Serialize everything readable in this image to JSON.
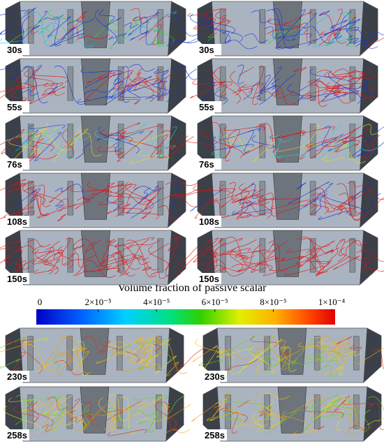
{
  "top_panels": [
    [
      "30s",
      "30s"
    ],
    [
      "55s",
      "55s"
    ],
    [
      "76s",
      "76s"
    ],
    [
      "108s",
      "108s"
    ],
    [
      "150s",
      "150s"
    ]
  ],
  "colorbar": {
    "title": "Volume fraction of passive scalar",
    "range": [
      0,
      0.0001
    ],
    "ticks": [
      0,
      {
        "value": 2e-05,
        "label": "2×10⁻⁵"
      },
      {
        "value": 4e-05,
        "label": "4×10⁻⁵"
      },
      {
        "value": 6e-05,
        "label": "6×10⁻⁵"
      },
      {
        "value": 8e-05,
        "label": "8×10⁻⁵"
      },
      {
        "value": 0.0001,
        "label": "1×10⁻⁴"
      }
    ]
  },
  "bottom_panels": [
    [
      "230s",
      "230s"
    ],
    [
      "258s",
      "258s"
    ]
  ]
}
